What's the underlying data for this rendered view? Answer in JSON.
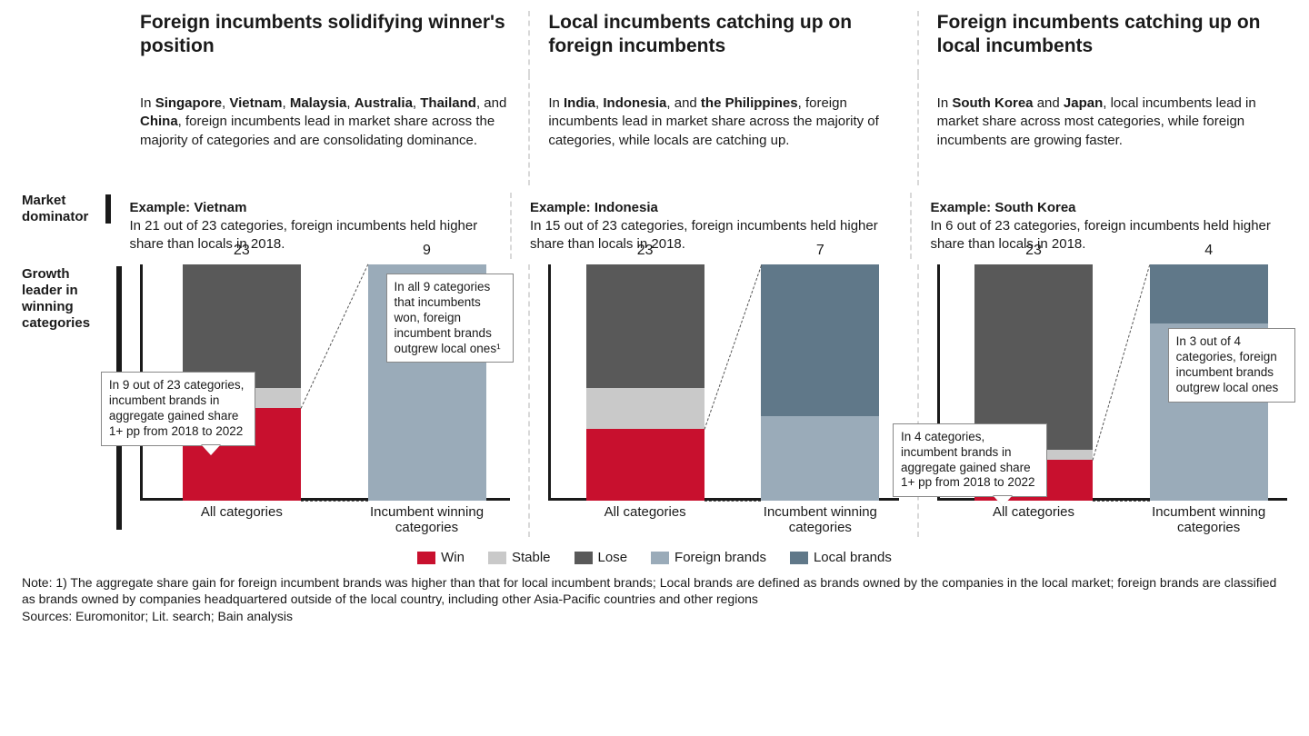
{
  "colors": {
    "win": "#c8102e",
    "stable": "#c9c9c9",
    "lose": "#595959",
    "foreign": "#9aabb9",
    "local": "#607889",
    "axis": "#1a1a1a",
    "divider": "#d9d9d9",
    "callout_border": "#888888",
    "bg": "#ffffff"
  },
  "row_labels": {
    "market_dominator": "Market dominator",
    "growth_leader": "Growth leader in winning categories"
  },
  "legend": [
    {
      "label": "Win",
      "color_key": "win"
    },
    {
      "label": "Stable",
      "color_key": "stable"
    },
    {
      "label": "Lose",
      "color_key": "lose"
    },
    {
      "label": "Foreign brands",
      "color_key": "foreign"
    },
    {
      "label": "Local brands",
      "color_key": "local"
    }
  ],
  "panels": [
    {
      "title": "Foreign incumbents solidifying winner's position",
      "desc_html": "In <b>Singapore</b>, <b>Vietnam</b>, <b>Malaysia</b>, <b>Australia</b>, <b>Thailand</b>, and <b>China</b>, foreign incumbents lead in market share across the majority of categories and are consolidating dominance.",
      "example_label": "Example: Vietnam",
      "example_text": "In 21 out of 23 categories, foreign incumbents held higher share than locals in 2018.",
      "chart": {
        "ymax": 23,
        "left_bar": {
          "total": 23,
          "segments": [
            {
              "key": "win",
              "value": 9
            },
            {
              "key": "stable",
              "value": 2
            },
            {
              "key": "lose",
              "value": 12
            }
          ],
          "xlabel": "All categories"
        },
        "right_bar": {
          "total": 9,
          "segments": [
            {
              "key": "foreign",
              "value": 9
            },
            {
              "key": "local",
              "value": 0
            }
          ],
          "xlabel": "Incumbent winning categories",
          "height_ratio": 1.0
        },
        "callout_left": {
          "text": "In 9 out of 23 categories, incumbent brands in aggregate gained share 1+ pp from 2018 to 2022",
          "pos": "lower"
        },
        "callout_right": {
          "text": "In all 9 categories that incumbents won, foreign incumbent brands outgrew local ones¹",
          "pos": "upper"
        }
      }
    },
    {
      "title": "Local incumbents catching up on foreign incumbents",
      "desc_html": "In <b>India</b>, <b>Indonesia</b>, and <b>the Philippines</b>, foreign incumbents lead in market share across the majority of categories, while locals are catching up.",
      "example_label": "Example: Indonesia",
      "example_text": "In 15 out of 23 categories, foreign incumbents held higher share than locals in 2018.",
      "chart": {
        "ymax": 23,
        "left_bar": {
          "total": 23,
          "segments": [
            {
              "key": "win",
              "value": 7
            },
            {
              "key": "stable",
              "value": 4
            },
            {
              "key": "lose",
              "value": 12
            }
          ],
          "xlabel": "All categories"
        },
        "right_bar": {
          "total": 7,
          "segments": [
            {
              "key": "foreign",
              "value": 2.5
            },
            {
              "key": "local",
              "value": 4.5
            }
          ],
          "xlabel": "Incumbent winning categories",
          "height_ratio": 1.0
        },
        "callout_left": null,
        "callout_right": null
      }
    },
    {
      "title": "Foreign incumbents catching up on local incumbents",
      "desc_html": "In <b>South Korea</b> and <b>Japan</b>, local incumbents lead in market share across most categories, while foreign incumbents are growing faster.",
      "example_label": "Example: South Korea",
      "example_text": "In 6 out of 23 categories, foreign incumbents held higher share than locals in 2018.",
      "chart": {
        "ymax": 23,
        "left_bar": {
          "total": 23,
          "segments": [
            {
              "key": "win",
              "value": 4
            },
            {
              "key": "stable",
              "value": 1
            },
            {
              "key": "lose",
              "value": 18
            }
          ],
          "xlabel": "All categories"
        },
        "right_bar": {
          "total": 4,
          "segments": [
            {
              "key": "foreign",
              "value": 3
            },
            {
              "key": "local",
              "value": 1
            }
          ],
          "xlabel": "Incumbent winning categories",
          "height_ratio": 1.0
        },
        "callout_left": {
          "text": "In 4 categories, incumbent brands in aggregate gained share 1+ pp from 2018 to 2022",
          "pos": "lower"
        },
        "callout_right": {
          "text": "In 3 out of 4 categories, foreign incumbent brands outgrew local ones",
          "pos": "mid"
        }
      }
    }
  ],
  "footnote": "Note: 1) The aggregate share gain for foreign incumbent brands was higher than that for local incumbent brands; Local brands are defined as brands owned by the companies in the local market; foreign brands are classified as brands owned by companies headquartered outside of the local country, including other Asia-Pacific countries and other regions",
  "sources": "Sources: Euromonitor; Lit. search; Bain analysis"
}
